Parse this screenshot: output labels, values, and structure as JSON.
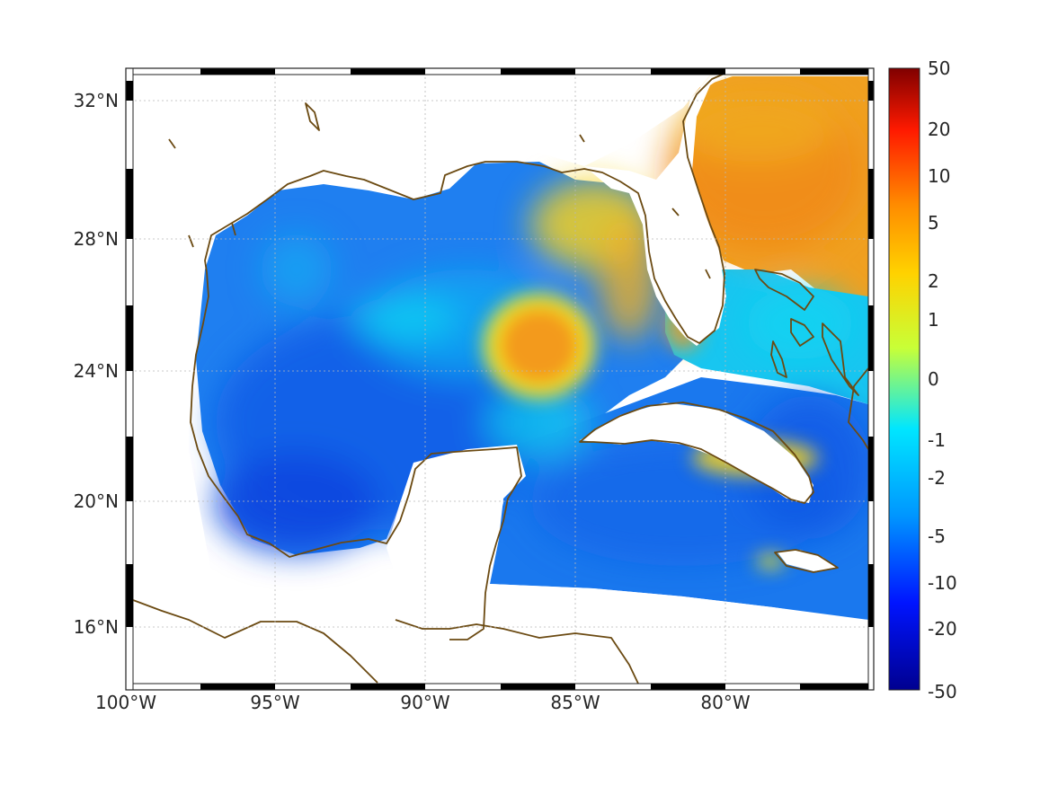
{
  "map": {
    "lat_ticks": [
      "32°N",
      "28°N",
      "24°N",
      "20°N",
      "16°N"
    ],
    "lon_ticks": [
      "100°W",
      "95°W",
      "90°W",
      "85°W",
      "80°W"
    ],
    "grid": true,
    "colors": {
      "background": "#ffffff",
      "coastline": "#6b4a12",
      "gulf_deep": "#0a5ae6",
      "gulf_mid": "#1e8ef5",
      "cyan": "#10d6f2",
      "warm_core": "#f39a1a",
      "yellow": "#f5ea20",
      "atlantic": "#f08a1a"
    }
  },
  "colorbar": {
    "labels": [
      "50",
      "20",
      "10",
      "5",
      "2",
      "1",
      "0",
      "-1",
      "-2",
      "-5",
      "-10",
      "-20",
      "-50"
    ],
    "colors": [
      "#800000",
      "#ff1a00",
      "#ff8c00",
      "#ffd200",
      "#c8ff37",
      "#00e6ff",
      "#0096ff",
      "#0014ff",
      "#000090"
    ]
  }
}
